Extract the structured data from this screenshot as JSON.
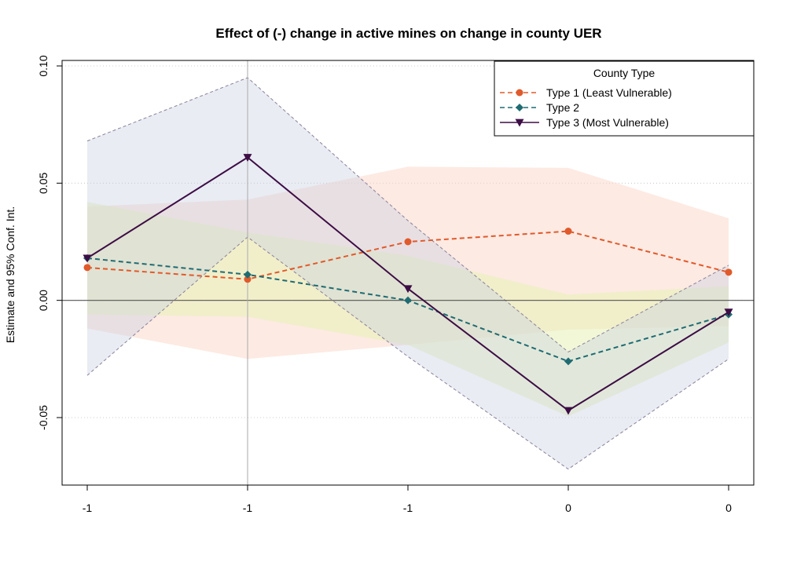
{
  "chart_data": {
    "type": "line",
    "title": "Effect of (-) change in active mines on change in county UER",
    "xlabel": "",
    "ylabel": "Estimate and 95% Conf. Int.",
    "categories": [
      "-1",
      "-1",
      "-1",
      "0",
      "0"
    ],
    "ylim": [
      -0.075,
      0.1
    ],
    "y_ticks": [
      -0.05,
      0.0,
      0.05,
      0.1
    ],
    "y_tick_labels": [
      "-0.05",
      "0.00",
      "0.05",
      "0.10"
    ],
    "reference_lines": {
      "horizontal": 0.0,
      "vertical_category_index": 1
    },
    "grid": "horizontal dotted",
    "legend": {
      "title": "County Type",
      "position": "top-right"
    },
    "series": [
      {
        "name": "Type 1 (Least Vulnerable)",
        "color": "#e05a2b",
        "band_color": "#fbd9cc",
        "line_style": "dashed",
        "marker": "circle",
        "values": [
          0.014,
          0.009,
          0.025,
          0.0295,
          0.012
        ],
        "ci_low": [
          -0.012,
          -0.025,
          -0.019,
          -0.0125,
          -0.011
        ],
        "ci_high": [
          0.04,
          0.043,
          0.057,
          0.0565,
          0.035
        ]
      },
      {
        "name": "Type 2",
        "color": "#1f6b72",
        "band_color": "#e8f2b6",
        "line_style": "dashed",
        "marker": "diamond",
        "values": [
          0.018,
          0.011,
          0.0,
          -0.026,
          -0.006
        ],
        "ci_low": [
          -0.006,
          -0.007,
          -0.019,
          -0.0495,
          -0.018
        ],
        "ci_high": [
          0.042,
          0.029,
          0.019,
          0.0025,
          0.006
        ]
      },
      {
        "name": "Type 3 (Most Vulnerable)",
        "color": "#3d0d45",
        "band_color": "#c7d0e0",
        "line_style": "solid",
        "marker": "triangle-down",
        "values": [
          0.018,
          0.061,
          0.005,
          -0.047,
          -0.005
        ],
        "ci_low": [
          -0.032,
          0.027,
          -0.024,
          -0.072,
          -0.025
        ],
        "ci_high": [
          0.068,
          0.095,
          0.034,
          -0.022,
          0.015
        ]
      }
    ]
  }
}
